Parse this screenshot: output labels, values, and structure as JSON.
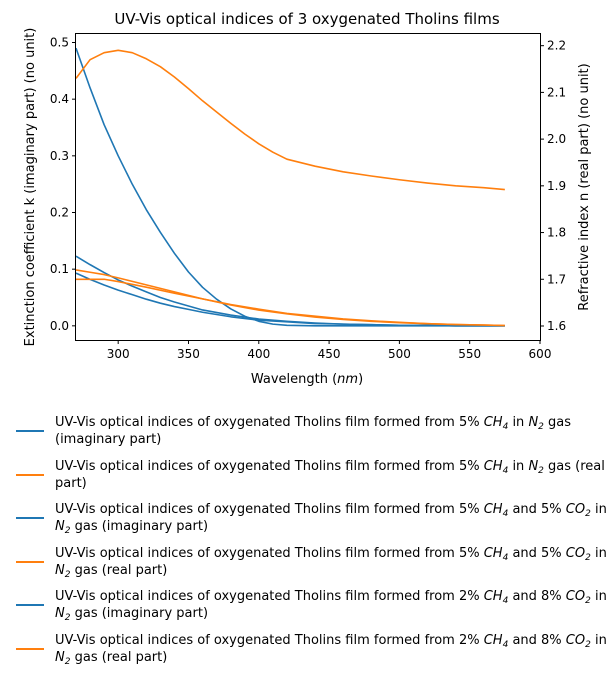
{
  "chart_data": {
    "type": "line",
    "title": "UV-Vis optical indices of 3 oxygenated Tholins films",
    "xlabel_text": "Wavelength (",
    "xlabel_unit": "nm",
    "xlabel_close": ")",
    "ylabel_left": "Extinction coefficient k (imaginary part) (no unit)",
    "ylabel_right": "Refractive index n (real part) (no unit)",
    "xlim": [
      270,
      600
    ],
    "ylim_left": [
      -0.025,
      0.515
    ],
    "ylim_right": [
      1.57,
      2.225
    ],
    "xticks": [
      300,
      350,
      400,
      450,
      500,
      550,
      600
    ],
    "yticks_left": [
      0.0,
      0.1,
      0.2,
      0.3,
      0.4,
      0.5
    ],
    "yticks_right": [
      1.6,
      1.7,
      1.8,
      1.9,
      2.0,
      2.1,
      2.2
    ],
    "ytick_labels_left": [
      "0.0",
      "0.1",
      "0.2",
      "0.3",
      "0.4",
      "0.5"
    ],
    "ytick_labels_right": [
      "1.6",
      "1.7",
      "1.8",
      "1.9",
      "2.0",
      "2.1",
      "2.2"
    ],
    "xtick_labels": [
      "300",
      "350",
      "400",
      "450",
      "500",
      "550",
      "600"
    ],
    "grid": false,
    "legend_placement": "below",
    "colors": {
      "imaginary": "#1f77b4",
      "real": "#ff7f0e"
    },
    "series": [
      {
        "axis": "left",
        "color": "#1f77b4",
        "x": [
          270,
          280,
          290,
          300,
          310,
          320,
          330,
          340,
          350,
          360,
          370,
          380,
          390,
          400,
          410,
          420,
          440,
          460,
          480,
          500,
          520,
          540,
          560,
          575
        ],
        "y": [
          0.49,
          0.42,
          0.355,
          0.3,
          0.25,
          0.205,
          0.165,
          0.128,
          0.095,
          0.068,
          0.047,
          0.03,
          0.017,
          0.008,
          0.003,
          0.001,
          0.0,
          0.0,
          0.0,
          0.0,
          0.0,
          0.0,
          0.0,
          0.0
        ]
      },
      {
        "axis": "right",
        "color": "#ff7f0e",
        "x": [
          270,
          280,
          290,
          300,
          310,
          320,
          330,
          340,
          350,
          360,
          370,
          380,
          390,
          400,
          410,
          420,
          440,
          460,
          480,
          500,
          520,
          540,
          560,
          575
        ],
        "y": [
          2.13,
          2.17,
          2.185,
          2.19,
          2.185,
          2.172,
          2.155,
          2.133,
          2.108,
          2.082,
          2.058,
          2.034,
          2.011,
          1.99,
          1.972,
          1.957,
          1.942,
          1.93,
          1.921,
          1.913,
          1.906,
          1.9,
          1.896,
          1.892
        ]
      },
      {
        "axis": "left",
        "color": "#1f77b4",
        "x": [
          270,
          280,
          290,
          300,
          310,
          320,
          330,
          340,
          350,
          360,
          380,
          400,
          420,
          440,
          460,
          480,
          500,
          520,
          540,
          560,
          575
        ],
        "y": [
          0.123,
          0.108,
          0.094,
          0.081,
          0.07,
          0.06,
          0.05,
          0.042,
          0.035,
          0.028,
          0.019,
          0.012,
          0.008,
          0.005,
          0.003,
          0.002,
          0.001,
          0.001,
          0.0,
          0.0,
          0.0
        ]
      },
      {
        "axis": "right",
        "color": "#ff7f0e",
        "x": [
          270,
          280,
          290,
          300,
          320,
          340,
          360,
          380,
          400,
          420,
          440,
          460,
          480,
          500,
          520,
          540,
          560,
          575
        ],
        "y": [
          1.72,
          1.715,
          1.71,
          1.703,
          1.688,
          1.673,
          1.658,
          1.645,
          1.634,
          1.626,
          1.619,
          1.614,
          1.61,
          1.607,
          1.605,
          1.603,
          1.602,
          1.601
        ]
      },
      {
        "axis": "left",
        "color": "#1f77b4",
        "x": [
          270,
          280,
          290,
          300,
          310,
          320,
          330,
          340,
          350,
          360,
          380,
          400,
          420,
          440,
          460,
          480,
          500,
          520,
          540,
          560,
          575
        ],
        "y": [
          0.093,
          0.082,
          0.072,
          0.063,
          0.055,
          0.047,
          0.04,
          0.034,
          0.029,
          0.024,
          0.016,
          0.01,
          0.007,
          0.004,
          0.003,
          0.002,
          0.001,
          0.001,
          0.0,
          0.0,
          0.0
        ]
      },
      {
        "axis": "right",
        "color": "#ff7f0e",
        "x": [
          270,
          280,
          290,
          300,
          320,
          340,
          360,
          380,
          400,
          420,
          440,
          460,
          480,
          500,
          520,
          540,
          560,
          575
        ],
        "y": [
          1.7,
          1.7,
          1.7,
          1.695,
          1.683,
          1.67,
          1.658,
          1.646,
          1.636,
          1.627,
          1.621,
          1.615,
          1.611,
          1.608,
          1.605,
          1.603,
          1.602,
          1.601
        ]
      }
    ]
  },
  "legend": [
    {
      "color": "#1f77b4",
      "pre": "UV-Vis optical indices of oxygenated Tholins film formed from 5% ",
      "g1": "CH",
      "s1": "4",
      "mid": " in ",
      "g2": "N",
      "s2": "2",
      "end": " gas (imaginary part)"
    },
    {
      "color": "#ff7f0e",
      "pre": "UV-Vis optical indices of oxygenated Tholins film formed from 5% ",
      "g1": "CH",
      "s1": "4",
      "mid": " in ",
      "g2": "N",
      "s2": "2",
      "end": " gas (real part)"
    },
    {
      "color": "#1f77b4",
      "pre": "UV-Vis optical indices of oxygenated Tholins film formed from 5% ",
      "g1": "CH",
      "s1": "4",
      "mid": " and 5% ",
      "g2": "CO",
      "s2": "2",
      "mid2": " in ",
      "g3": "N",
      "s3": "2",
      "end": " gas (imaginary part)"
    },
    {
      "color": "#ff7f0e",
      "pre": "UV-Vis optical indices of oxygenated Tholins film formed from 5% ",
      "g1": "CH",
      "s1": "4",
      "mid": " and 5% ",
      "g2": "CO",
      "s2": "2",
      "mid2": " in ",
      "g3": "N",
      "s3": "2",
      "end": " gas (real part)"
    },
    {
      "color": "#1f77b4",
      "pre": "UV-Vis optical indices of oxygenated Tholins film formed from 2% ",
      "g1": "CH",
      "s1": "4",
      "mid": " and 8% ",
      "g2": "CO",
      "s2": "2",
      "mid2": " in ",
      "g3": "N",
      "s3": "2",
      "end": " gas (imaginary part)"
    },
    {
      "color": "#ff7f0e",
      "pre": "UV-Vis optical indices of oxygenated Tholins film formed from 2% ",
      "g1": "CH",
      "s1": "4",
      "mid": " and 8% ",
      "g2": "CO",
      "s2": "2",
      "mid2": " in ",
      "g3": "N",
      "s3": "2",
      "end": " gas (real part)"
    }
  ]
}
